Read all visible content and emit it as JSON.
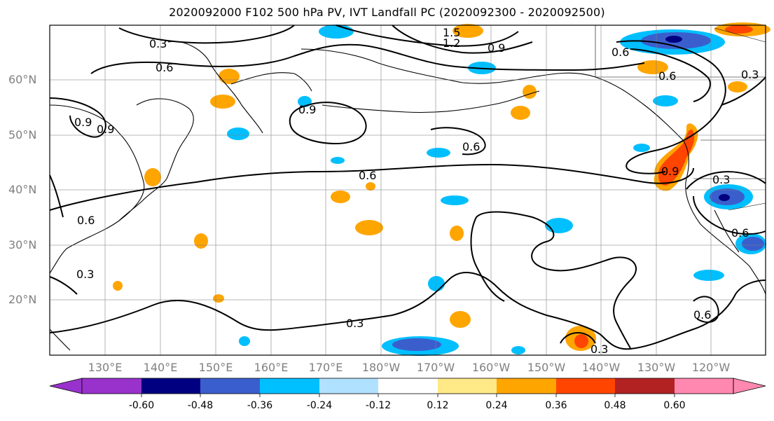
{
  "title": "2020092000 F102 500 hPa PV, IVT Landfall PC (2020092300 - 2020092500)",
  "lat_labels": [
    "60°N",
    "50°N",
    "40°N",
    "30°N",
    "20°N"
  ],
  "lon_labels": [
    "130°E",
    "140°E",
    "150°E",
    "160°E",
    "170°E",
    "180°W",
    "170°W",
    "160°W",
    "150°W",
    "140°W",
    "130°W",
    "120°W"
  ],
  "contour_labels": [
    "0.3",
    "0.6",
    "1.5",
    "1.2",
    "0.9",
    "0.6",
    "0.6",
    "0.9",
    "0.6",
    "0.6",
    "0.9",
    "0.9",
    "0.6",
    "0.9",
    "0.3",
    "0.3",
    "0.3",
    "0.3",
    "0.6",
    "0.6",
    "0.3"
  ],
  "colorbar": {
    "tick_labels": [
      "-0.60",
      "-0.48",
      "-0.36",
      "-0.24",
      "-0.12",
      "0.12",
      "0.24",
      "0.36",
      "0.48",
      "0.60"
    ],
    "colors": [
      "#9932cc",
      "#000080",
      "#3a5fcd",
      "#00bfff",
      "#b0e2ff",
      "#ffffff",
      "#ffe986",
      "#ffa500",
      "#ff4500",
      "#b22222",
      "#ff88b0"
    ]
  }
}
